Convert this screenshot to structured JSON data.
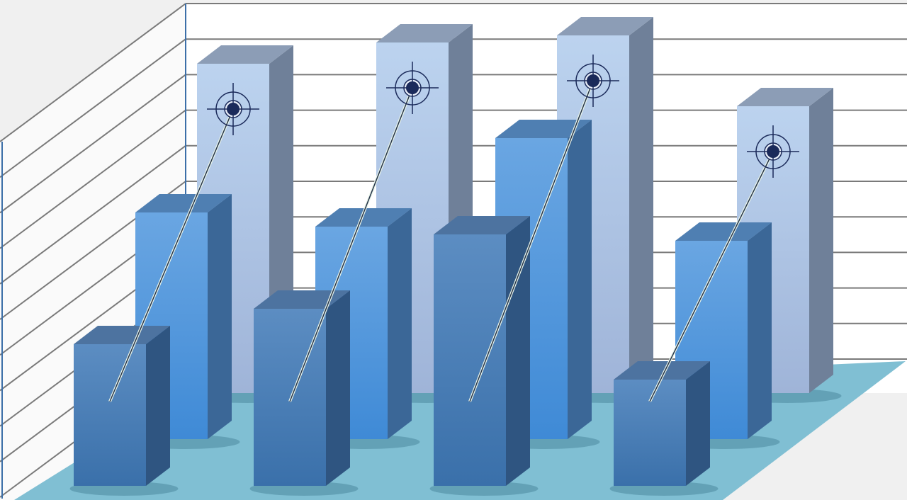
{
  "chart_data": {
    "type": "bar",
    "style": "3d-clustered-depth",
    "title": "",
    "xlabel": "",
    "ylabel": "",
    "categories": [
      "",
      "",
      "",
      ""
    ],
    "ylim": [
      0,
      10
    ],
    "grid": true,
    "legend": "none",
    "series": [
      {
        "values": [
          9.3,
          9.9,
          10.1,
          8.1
        ],
        "color": "#b8cfec",
        "row": "back",
        "marker": "crosshair-target"
      },
      {
        "values": [
          6.4,
          6.0,
          8.5,
          5.6
        ],
        "color": "#5b9fe2",
        "row": "middle"
      },
      {
        "values": [
          4.0,
          5.0,
          7.1,
          3.0
        ],
        "color": "#4a80ba",
        "row": "front"
      }
    ],
    "colors": {
      "background": "#f0f0f0",
      "wall": "#ffffff",
      "gridline": "#7a7a7a",
      "floor": "#80bfd3",
      "axis": "#3c6fa8",
      "target": "#1b2a5a"
    }
  }
}
